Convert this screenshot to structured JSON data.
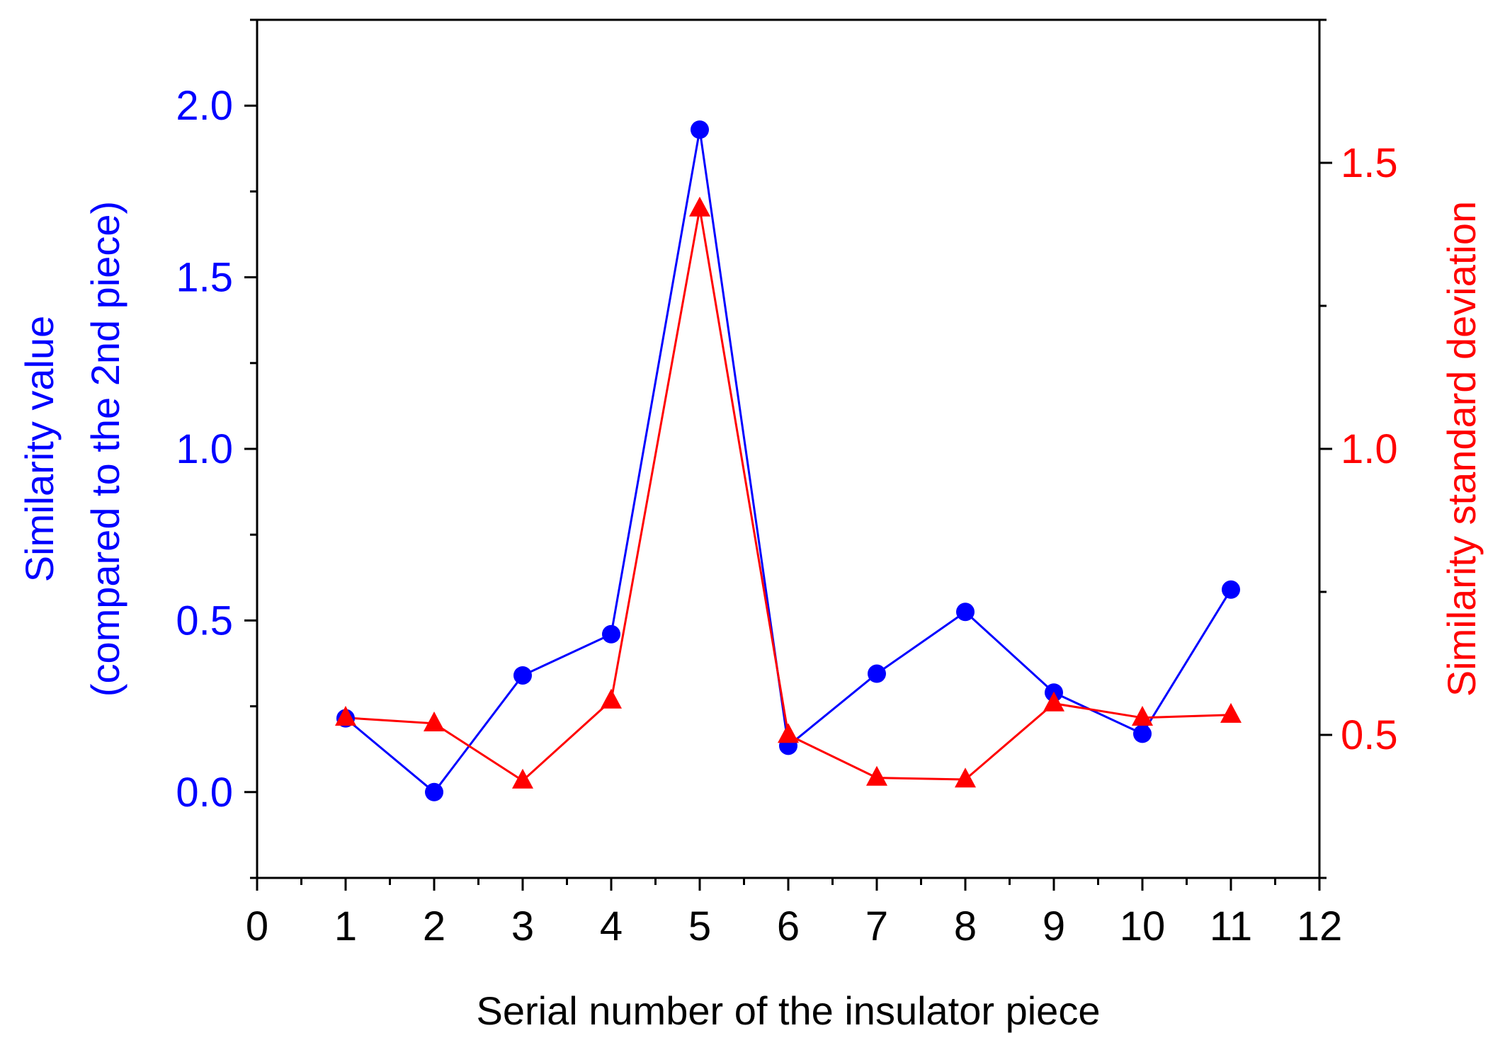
{
  "chart_data": {
    "type": "line",
    "xlabel": "Serial number of the insulator piece",
    "x": [
      1,
      2,
      3,
      4,
      5,
      6,
      7,
      8,
      9,
      10,
      11
    ],
    "xlim": [
      0,
      12
    ],
    "xticks": [
      0,
      1,
      2,
      3,
      4,
      5,
      6,
      7,
      8,
      9,
      10,
      11,
      12
    ],
    "xtick_labels": [
      "0",
      "1",
      "2",
      "3",
      "4",
      "5",
      "6",
      "7",
      "8",
      "9",
      "10",
      "11",
      "12"
    ],
    "left_axis": {
      "label_line1": "Similarity value",
      "label_line2": "(compared to the 2nd piece)",
      "ylim": [
        -0.25,
        2.25
      ],
      "ticks": [
        0.0,
        0.5,
        1.0,
        1.5,
        2.0
      ],
      "tick_labels": [
        "0.0",
        "0.5",
        "1.0",
        "1.5",
        "2.0"
      ],
      "color": "#0000ff"
    },
    "right_axis": {
      "label": "Similarity standard deviation",
      "ylim": [
        0.25,
        1.75
      ],
      "ticks": [
        0.5,
        1.0,
        1.5
      ],
      "tick_labels": [
        "0.5",
        "1.0",
        "1.5"
      ],
      "color": "#ff0000"
    },
    "series": [
      {
        "name": "Similarity value",
        "axis": "left",
        "marker": "circle",
        "color": "#0000ff",
        "values": [
          0.215,
          0.0,
          0.34,
          0.46,
          1.93,
          0.135,
          0.345,
          0.525,
          0.29,
          0.17,
          0.59
        ]
      },
      {
        "name": "Similarity standard deviation",
        "axis": "right",
        "marker": "triangle",
        "color": "#ff0000",
        "values": [
          0.53,
          0.52,
          0.42,
          0.56,
          1.42,
          0.5,
          0.425,
          0.422,
          0.555,
          0.53,
          0.535
        ]
      }
    ]
  }
}
